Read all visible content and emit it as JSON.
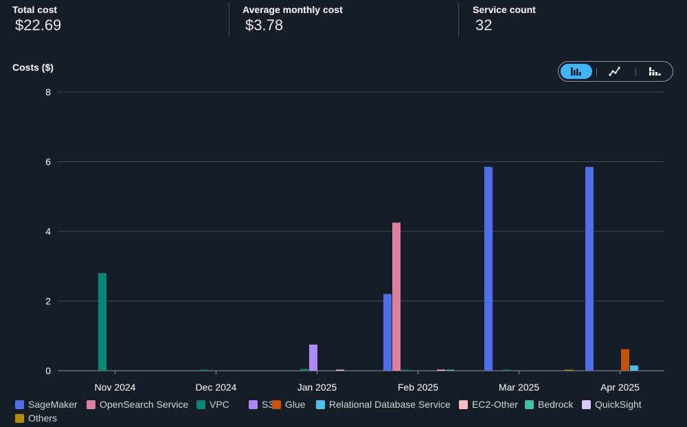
{
  "summary": [
    {
      "label": "Total cost",
      "value": "$22.69"
    },
    {
      "label": "Average monthly cost",
      "value": "$3.78"
    },
    {
      "label": "Service count",
      "value": "32"
    }
  ],
  "chart_data": {
    "type": "bar",
    "ylabel": "Costs ($)",
    "ylim": [
      0,
      8
    ],
    "yticks": [
      "8",
      "6",
      "4",
      "2",
      "0"
    ],
    "grid": true,
    "legend_position": "bottom",
    "categories": [
      "Nov 2024",
      "Dec 2024",
      "Jan 2025",
      "Feb 2025",
      "Mar 2025",
      "Apr 2025"
    ],
    "series": [
      {
        "name": "SageMaker",
        "color": "#4f6fea",
        "values": [
          0,
          0,
          0,
          2.2,
          5.85,
          5.85
        ]
      },
      {
        "name": "OpenSearch Service",
        "color": "#e07f9d",
        "values": [
          0,
          0,
          0,
          4.25,
          0,
          0
        ]
      },
      {
        "name": "VPC",
        "color": "#018977",
        "values": [
          2.8,
          0.01,
          0.05,
          0.01,
          0.01,
          0
        ]
      },
      {
        "name": "S3",
        "color": "#b088f5",
        "values": [
          0,
          0,
          0.75,
          0,
          0,
          0
        ]
      },
      {
        "name": "Glue",
        "color": "#c55305",
        "values": [
          0,
          0,
          0,
          0,
          0,
          0.62
        ]
      },
      {
        "name": "Relational Database Service",
        "color": "#4cc0e6",
        "values": [
          0,
          0,
          0,
          0,
          0,
          0.15
        ]
      },
      {
        "name": "EC2-Other",
        "color": "#f9bcc6",
        "values": [
          0,
          0,
          0.03,
          0.01,
          0,
          0
        ]
      },
      {
        "name": "Bedrock",
        "color": "#3dc4a2",
        "values": [
          0,
          0,
          0,
          0.01,
          0,
          0
        ]
      },
      {
        "name": "QuickSight",
        "color": "#d9c6fa",
        "values": [
          0,
          0,
          0,
          0,
          0,
          0
        ]
      },
      {
        "name": "Others",
        "color": "#b28b00",
        "values": [
          0,
          0,
          0,
          0,
          0.01,
          0
        ]
      }
    ]
  },
  "view_toggle": [
    {
      "label": "Bar chart",
      "icon": "bar-chart-icon",
      "selected": true
    },
    {
      "label": "Line chart",
      "icon": "line-chart-icon",
      "selected": false
    },
    {
      "label": "Stacked bar chart",
      "icon": "stacked-bar-chart-icon",
      "selected": false
    }
  ]
}
